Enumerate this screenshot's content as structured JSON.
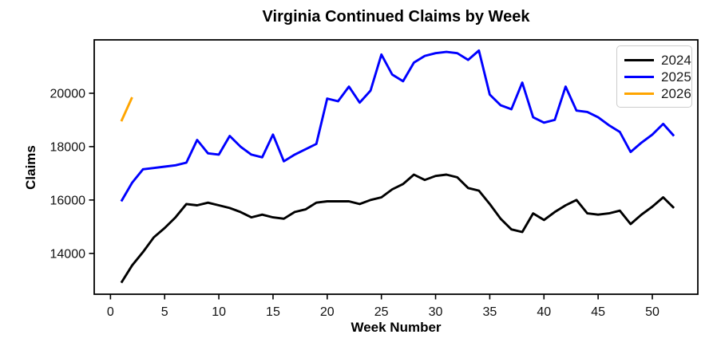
{
  "figure": {
    "title": "Virginia Continued Claims by Week",
    "x_axis_label": "Week Number",
    "y_axis_label": "Claims"
  },
  "chart_data": {
    "type": "line",
    "title": "Virginia Continued Claims by Week",
    "xlabel": "Week Number",
    "ylabel": "Claims",
    "xlim": [
      -1.5,
      54.2
    ],
    "ylim": [
      12470,
      22000
    ],
    "xticks": [
      0,
      5,
      10,
      15,
      20,
      25,
      30,
      35,
      40,
      45,
      50
    ],
    "yticks": [
      14000,
      16000,
      18000,
      20000
    ],
    "grid": false,
    "legend_position": "upper right",
    "frame_color": "#000000",
    "series": [
      {
        "name": "2024",
        "color": "#000000",
        "weeks": [
          1,
          2,
          3,
          4,
          5,
          6,
          7,
          8,
          9,
          10,
          11,
          12,
          13,
          14,
          15,
          16,
          17,
          18,
          19,
          20,
          21,
          22,
          23,
          24,
          25,
          26,
          27,
          28,
          29,
          30,
          31,
          32,
          33,
          34,
          35,
          36,
          37,
          38,
          39,
          40,
          41,
          42,
          43,
          44,
          45,
          46,
          47,
          48,
          49,
          50,
          51,
          52
        ],
        "values": [
          12900,
          13550,
          14050,
          14600,
          14950,
          15350,
          15850,
          15800,
          15900,
          15800,
          15700,
          15550,
          15350,
          15450,
          15350,
          15300,
          15550,
          15650,
          15900,
          15950,
          15950,
          15950,
          15850,
          16000,
          16100,
          16400,
          16600,
          16950,
          16750,
          16900,
          16950,
          16850,
          16450,
          16350,
          15850,
          15300,
          14900,
          14800,
          15500,
          15250,
          15550,
          15800,
          16000,
          15500,
          15450,
          15500,
          15600,
          15100,
          15450,
          15750,
          16100,
          15700
        ]
      },
      {
        "name": "2025",
        "color": "#0000ff",
        "weeks": [
          1,
          2,
          3,
          4,
          5,
          6,
          7,
          8,
          9,
          10,
          11,
          12,
          13,
          14,
          15,
          16,
          17,
          18,
          19,
          20,
          21,
          22,
          23,
          24,
          25,
          26,
          27,
          28,
          29,
          30,
          31,
          32,
          33,
          34,
          35,
          36,
          37,
          38,
          39,
          40,
          41,
          42,
          43,
          44,
          45,
          46,
          47,
          48,
          49,
          50,
          51,
          52
        ],
        "values": [
          15950,
          16650,
          17150,
          17200,
          17250,
          17300,
          17400,
          18250,
          17750,
          17700,
          18400,
          18000,
          17700,
          17600,
          18450,
          17450,
          17700,
          17900,
          18100,
          19800,
          19700,
          20250,
          19650,
          20100,
          21450,
          20700,
          20450,
          21150,
          21400,
          21500,
          21550,
          21500,
          21250,
          21600,
          19950,
          19550,
          19400,
          20400,
          19100,
          18900,
          19000,
          20250,
          19350,
          19300,
          19100,
          18800,
          18550,
          17800,
          18150,
          18450,
          18850,
          18400
        ]
      },
      {
        "name": "2026",
        "color": "#ffa500",
        "weeks": [
          1,
          2
        ],
        "values": [
          18950,
          19850
        ]
      }
    ]
  }
}
